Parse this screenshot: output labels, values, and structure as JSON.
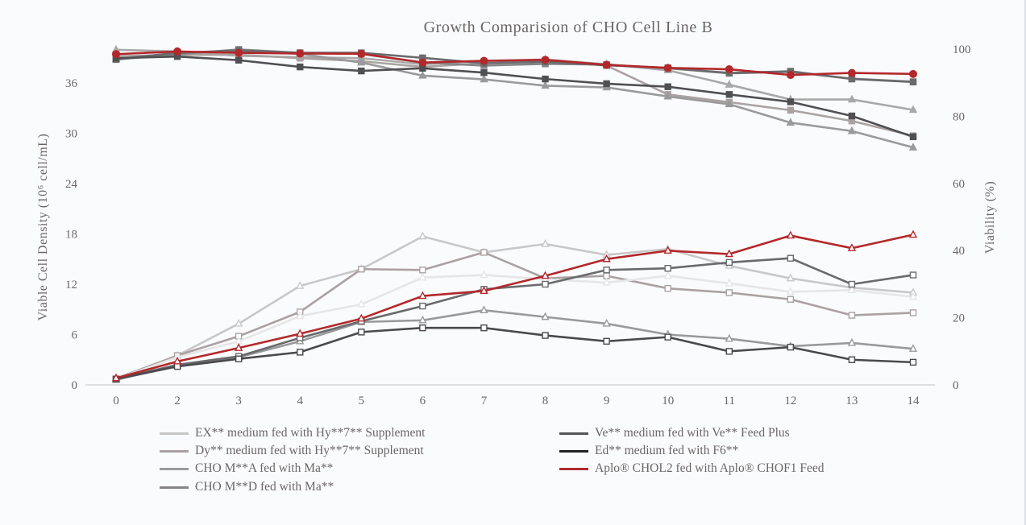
{
  "chart_data": {
    "type": "line",
    "title": "Growth Comparision of CHO Cell Line B",
    "xlabel": "",
    "ylabel": "Viable Cell Density (10⁶ cell/mL)",
    "ylabel_right": "Viability (%)",
    "categories": [
      "0",
      "2",
      "3",
      "4",
      "5",
      "6",
      "7",
      "8",
      "9",
      "10",
      "11",
      "12",
      "13",
      "14"
    ],
    "ylim": [
      0,
      40
    ],
    "yticks": [
      0,
      6,
      12,
      18,
      24,
      30,
      36
    ],
    "ylim_right": [
      0,
      100
    ],
    "yticks_right": [
      0,
      20,
      40,
      60,
      80,
      100
    ],
    "grid": false,
    "legend_position": "bottom",
    "legend": [
      {
        "label": " EX** medium fed with Hy**7** Supplement",
        "color": "#c6c6c6"
      },
      {
        "label": " Dy** medium fed with Hy**7** Supplement",
        "color": "#a9a1a0"
      },
      {
        "label": "CHO M**A fed with Ma**",
        "color": "#9c9c9e"
      },
      {
        "label": "CHO M**D fed with Ma**",
        "color": "#858587"
      },
      {
        "label": " Ve** medium fed with Ve** Feed Plus",
        "color": "#555557"
      },
      {
        "label": "Ed** medium fed with F6**",
        "color": "#222224"
      },
      {
        "label": "Aplo® CHOL2 fed with Aplo® CHOF1 Feed",
        "color": "#b02a2c"
      }
    ],
    "series_vcd": [
      {
        "name": "EX** medium fed with Hy**7** Supplement",
        "color": "#c8c8c8",
        "marker": "triangle",
        "values": [
          0.8,
          3.5,
          7.3,
          11.8,
          13.8,
          17.7,
          15.8,
          16.8,
          15.5,
          16.2,
          14.2,
          12.7,
          11.6,
          11.0
        ]
      },
      {
        "name": "Dy** medium fed with Hy**7** Supplement",
        "color": "#aaa2a1",
        "marker": "square",
        "values": [
          0.7,
          3.5,
          5.8,
          8.7,
          13.8,
          13.7,
          15.8,
          12.7,
          13.0,
          11.5,
          11.0,
          10.2,
          8.3,
          8.6
        ]
      },
      {
        "name": "CHO M**A fed with Ma**",
        "color": "#e6e6e6",
        "marker": "triangle",
        "values": [
          0.7,
          3.3,
          5.2,
          8.2,
          9.6,
          12.8,
          13.1,
          12.6,
          12.2,
          13.0,
          12.1,
          11.1,
          11.3,
          10.5
        ]
      },
      {
        "name": "CHO M**D fed with Ma**",
        "color": "#9a9a9c",
        "marker": "triangle",
        "values": [
          0.6,
          2.3,
          3.3,
          5.2,
          7.5,
          7.7,
          8.9,
          8.1,
          7.3,
          6.0,
          5.5,
          4.6,
          5.0,
          4.3
        ]
      },
      {
        "name": "Ve** medium fed with Ve** Feed Plus",
        "color": "#6a6a6c",
        "marker": "square",
        "values": [
          0.7,
          2.4,
          3.4,
          5.6,
          7.6,
          9.4,
          11.4,
          12.0,
          13.7,
          13.9,
          14.6,
          15.1,
          12.0,
          13.1
        ]
      },
      {
        "name": "Ed** medium fed with F6**",
        "color": "#4a4a4c",
        "marker": "square",
        "values": [
          0.7,
          2.2,
          3.1,
          3.9,
          6.3,
          6.8,
          6.8,
          5.9,
          5.2,
          5.7,
          4.0,
          4.5,
          3.0,
          2.7
        ]
      },
      {
        "name": "Aplo® CHOL2 fed with Aplo® CHOF1 Feed",
        "color": "#b3282b",
        "marker": "triangle",
        "values": [
          0.8,
          2.8,
          4.4,
          6.1,
          7.9,
          10.6,
          11.2,
          13.0,
          15.0,
          16.0,
          15.6,
          17.8,
          16.3,
          17.9
        ]
      }
    ],
    "series_viability": [
      {
        "name": "EX** medium fed with Hy**7** Supplement",
        "color": "#a8a8a8",
        "marker": "triangle",
        "values": [
          99.8,
          99.3,
          98.0,
          97.6,
          97.3,
          95.5,
          96.5,
          96.9,
          95.5,
          93.7,
          89.4,
          85.0,
          85.0,
          81.9
        ]
      },
      {
        "name": "Dy** medium fed with Hy**7** Supplement",
        "color": "#aaa2a1",
        "marker": "square",
        "values": [
          97.9,
          98.3,
          98.3,
          97.3,
          96.4,
          94.7,
          95.8,
          96.5,
          95.1,
          86.5,
          84.2,
          81.8,
          78.6,
          74.2
        ]
      },
      {
        "name": "CHO M**A fed with Ma**",
        "color": "#9a9a9c",
        "marker": "triangle",
        "values": [
          97.0,
          98.8,
          99.3,
          98.6,
          96.0,
          92.1,
          91.0,
          89.1,
          88.6,
          85.9,
          83.6,
          78.1,
          75.6,
          70.7
        ]
      },
      {
        "name": "CHO M**D fed with Ma**",
        "color": "#858587",
        "marker": "square",
        "values": [
          96.9,
          98.5,
          99.9,
          98.9,
          98.6,
          96.0,
          95.1,
          95.6,
          95.4,
          94.3,
          92.8,
          93.2,
          91.2,
          90.3
        ]
      },
      {
        "name": "Ve** medium fed with Ve** Feed Plus",
        "color": "#6a6a6c",
        "marker": "square",
        "values": [
          97.0,
          98.9,
          99.6,
          98.9,
          98.9,
          97.4,
          95.8,
          96.2,
          95.2,
          94.4,
          92.9,
          93.4,
          91.1,
          90.2
        ]
      },
      {
        "name": "Ed** medium fed with F6**",
        "color": "#505052",
        "marker": "square",
        "values": [
          97.3,
          97.8,
          96.7,
          94.7,
          93.5,
          94.3,
          93.0,
          91.1,
          89.7,
          88.8,
          86.5,
          84.3,
          80.1,
          73.9
        ]
      },
      {
        "name": "Aplo® CHOL2 fed with Aplo® CHOF1 Feed",
        "color": "#b3282b",
        "marker": "circle",
        "values": [
          98.5,
          99.3,
          98.9,
          98.7,
          98.6,
          96.0,
          96.5,
          96.8,
          95.3,
          94.4,
          94.0,
          92.3,
          92.9,
          92.6
        ]
      }
    ]
  }
}
